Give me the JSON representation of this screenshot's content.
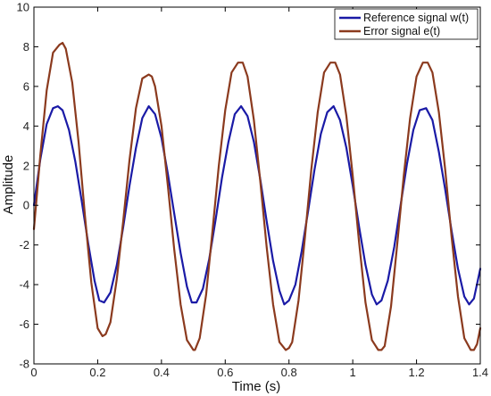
{
  "chart_data": {
    "type": "line",
    "title": "",
    "xlabel": "Time (s)",
    "ylabel": "Amplitude",
    "xlim": [
      0,
      1.4
    ],
    "ylim": [
      -8,
      10
    ],
    "xticks": [
      0,
      0.2,
      0.4,
      0.6,
      0.8,
      1,
      1.2,
      1.4
    ],
    "xtick_labels": [
      "0",
      "0.2",
      "0.4",
      "0.6",
      "0.8",
      "1",
      "1.2",
      "1.4"
    ],
    "yticks": [
      -8,
      -6,
      -4,
      -2,
      0,
      2,
      4,
      6,
      8,
      10
    ],
    "ytick_labels": [
      "-8",
      "-6",
      "-4",
      "-2",
      "0",
      "2",
      "4",
      "6",
      "8",
      "10"
    ],
    "grid": false,
    "legend_position": "top-right",
    "series": [
      {
        "name": "Reference signal w(t)",
        "color": "#1a1aa6",
        "x": [
          0,
          0.02,
          0.04,
          0.06,
          0.075,
          0.09,
          0.11,
          0.13,
          0.15,
          0.17,
          0.19,
          0.205,
          0.22,
          0.24,
          0.26,
          0.28,
          0.3,
          0.32,
          0.34,
          0.36,
          0.38,
          0.4,
          0.42,
          0.44,
          0.46,
          0.48,
          0.495,
          0.51,
          0.53,
          0.55,
          0.57,
          0.59,
          0.61,
          0.63,
          0.65,
          0.67,
          0.69,
          0.71,
          0.73,
          0.75,
          0.77,
          0.785,
          0.8,
          0.82,
          0.84,
          0.86,
          0.88,
          0.9,
          0.92,
          0.94,
          0.96,
          0.98,
          1.0,
          1.02,
          1.04,
          1.06,
          1.075,
          1.09,
          1.11,
          1.13,
          1.15,
          1.17,
          1.19,
          1.21,
          1.23,
          1.25,
          1.27,
          1.29,
          1.31,
          1.33,
          1.35,
          1.365,
          1.38,
          1.4
        ],
        "y": [
          0,
          2.3,
          4.1,
          4.9,
          5,
          4.8,
          3.8,
          2.2,
          0.2,
          -1.9,
          -3.8,
          -4.8,
          -4.9,
          -4.4,
          -3.0,
          -1.1,
          1.0,
          2.9,
          4.4,
          5,
          4.6,
          3.4,
          1.6,
          -0.4,
          -2.4,
          -4.1,
          -4.9,
          -4.9,
          -4.2,
          -2.7,
          -0.7,
          1.4,
          3.2,
          4.6,
          5,
          4.5,
          3.2,
          1.3,
          -0.8,
          -2.8,
          -4.3,
          -5,
          -4.8,
          -4.0,
          -2.3,
          -0.3,
          1.8,
          3.6,
          4.7,
          5,
          4.3,
          2.9,
          1.0,
          -1.1,
          -3.0,
          -4.5,
          -5,
          -4.8,
          -3.8,
          -2.1,
          0,
          2.1,
          3.8,
          4.8,
          4.9,
          4.3,
          2.7,
          0.8,
          -1.3,
          -3.2,
          -4.6,
          -5,
          -4.7,
          -3.2
        ]
      },
      {
        "name": "Error signal e(t)",
        "color": "#8b3a1e",
        "x": [
          0,
          0.02,
          0.04,
          0.06,
          0.08,
          0.09,
          0.1,
          0.12,
          0.14,
          0.16,
          0.18,
          0.2,
          0.215,
          0.225,
          0.24,
          0.26,
          0.28,
          0.3,
          0.32,
          0.34,
          0.36,
          0.37,
          0.38,
          0.4,
          0.42,
          0.44,
          0.46,
          0.48,
          0.5,
          0.505,
          0.52,
          0.54,
          0.56,
          0.58,
          0.6,
          0.62,
          0.64,
          0.655,
          0.67,
          0.69,
          0.71,
          0.73,
          0.75,
          0.77,
          0.79,
          0.8,
          0.81,
          0.83,
          0.85,
          0.87,
          0.89,
          0.91,
          0.93,
          0.945,
          0.96,
          0.98,
          1.0,
          1.02,
          1.04,
          1.06,
          1.08,
          1.09,
          1.1,
          1.12,
          1.14,
          1.16,
          1.18,
          1.2,
          1.22,
          1.235,
          1.25,
          1.27,
          1.29,
          1.31,
          1.33,
          1.35,
          1.37,
          1.38,
          1.39,
          1.4
        ],
        "y": [
          -1.2,
          2.5,
          5.8,
          7.7,
          8.1,
          8.2,
          7.9,
          6.2,
          3.2,
          -0.5,
          -3.9,
          -6.2,
          -6.6,
          -6.5,
          -5.9,
          -3.7,
          -0.8,
          2.3,
          4.9,
          6.4,
          6.6,
          6.5,
          6.0,
          4.0,
          1.0,
          -2.2,
          -5.0,
          -6.8,
          -7.3,
          -7.3,
          -6.7,
          -4.5,
          -1.3,
          2.0,
          4.8,
          6.7,
          7.2,
          7.2,
          6.5,
          4.3,
          1.2,
          -2.1,
          -5.0,
          -6.9,
          -7.3,
          -7.2,
          -6.9,
          -4.8,
          -1.6,
          1.8,
          4.7,
          6.7,
          7.2,
          7.2,
          6.6,
          4.5,
          1.5,
          -1.9,
          -4.9,
          -6.8,
          -7.3,
          -7.3,
          -7.1,
          -5.1,
          -1.9,
          1.5,
          4.4,
          6.5,
          7.2,
          7.2,
          6.7,
          4.7,
          1.8,
          -1.6,
          -4.6,
          -6.7,
          -7.3,
          -7.3,
          -7.0,
          -6.2
        ]
      }
    ]
  }
}
